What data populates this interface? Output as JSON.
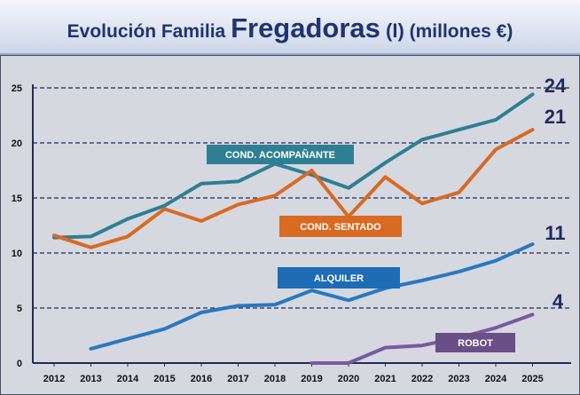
{
  "title": {
    "part1": "Evolución Familia ",
    "part2": "Fregadoras",
    "part3": " (I)",
    "part4": " (millones €)"
  },
  "chart_data": {
    "type": "line",
    "x": [
      "2012",
      "2013",
      "2014",
      "2015",
      "2016",
      "2017",
      "2018",
      "2019",
      "2020",
      "2021",
      "2022",
      "2023",
      "2024",
      "2025"
    ],
    "ylim": [
      0,
      25
    ],
    "yticks": [
      0,
      5,
      10,
      15,
      20,
      25
    ],
    "grid": "horizontal dashed",
    "series": [
      {
        "name": "COND. ACOMPAÑANTE",
        "color": "#2e7f93",
        "label_bg": "#2e7f93",
        "end_label": "24",
        "values": [
          11.4,
          11.5,
          13.1,
          14.3,
          16.3,
          16.5,
          18.1,
          17.1,
          15.9,
          18.2,
          20.3,
          21.2,
          22.1,
          24.4
        ]
      },
      {
        "name": "COND. SENTADO",
        "color": "#d86a22",
        "label_bg": "#d86a22",
        "end_label": "21",
        "values": [
          11.6,
          10.5,
          11.5,
          14.0,
          12.9,
          14.4,
          15.2,
          17.5,
          13.3,
          16.9,
          14.5,
          15.5,
          19.4,
          21.2
        ]
      },
      {
        "name": "ALQUILER",
        "color": "#2a78c0",
        "label_bg": "#1d6cb5",
        "end_label": "11",
        "values": [
          null,
          1.3,
          2.2,
          3.1,
          4.6,
          5.2,
          5.3,
          6.6,
          5.7,
          6.8,
          7.5,
          8.3,
          9.3,
          10.8
        ]
      },
      {
        "name": "ROBOT",
        "color": "#7a5a9e",
        "label_bg": "#6a4f87",
        "end_label": "4",
        "values": [
          null,
          null,
          null,
          null,
          null,
          null,
          null,
          0.0,
          0.0,
          1.4,
          1.6,
          2.3,
          3.2,
          4.4
        ]
      }
    ]
  }
}
